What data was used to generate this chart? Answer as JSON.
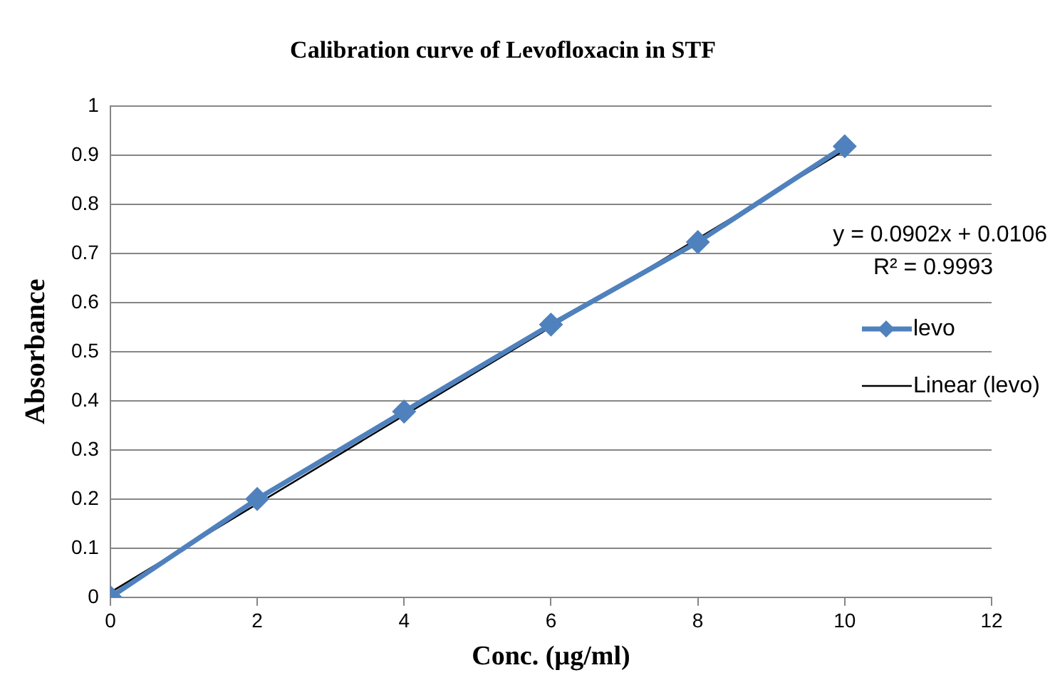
{
  "chart_data": {
    "type": "line",
    "title": "Calibration curve of Levofloxacin in STF",
    "xlabel": "Conc. (µg/ml)",
    "ylabel": "Absorbance",
    "xlim": [
      0,
      12
    ],
    "xticks": [
      0,
      2,
      4,
      6,
      8,
      10,
      12
    ],
    "ylim": [
      0,
      1
    ],
    "yticks": [
      0,
      0.1,
      0.2,
      0.3,
      0.4,
      0.5,
      0.6,
      0.7,
      0.8,
      0.9,
      1
    ],
    "grid": "y",
    "legend": "right",
    "marker": "diamond",
    "series": [
      {
        "name": "levo",
        "color": "#4f81bd",
        "x": [
          0,
          2,
          4,
          6,
          8,
          10
        ],
        "values": [
          0,
          0.2,
          0.378,
          0.555,
          0.723,
          0.918
        ]
      },
      {
        "name": "Linear (levo)",
        "type": "line",
        "color": "#000000",
        "x": [
          0,
          10
        ],
        "values": [
          0.01,
          0.91
        ],
        "marker": "none"
      }
    ],
    "annotations": [
      "y = 0.0902x + 0.0106",
      "R² = 0.9993"
    ]
  }
}
